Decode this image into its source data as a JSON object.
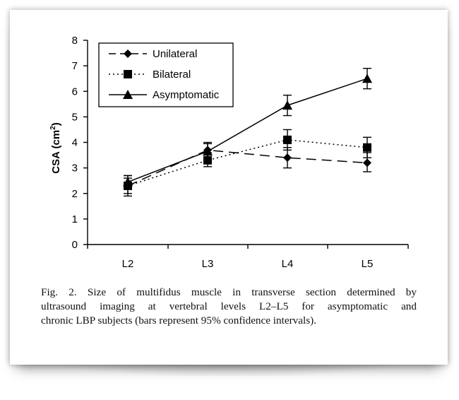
{
  "chart_data": {
    "type": "line",
    "categories": [
      "L2",
      "L3",
      "L4",
      "L5"
    ],
    "ylabel": "CSA (cm²)",
    "ylim": [
      0,
      8
    ],
    "yticks": [
      0,
      1,
      2,
      3,
      4,
      5,
      6,
      7,
      8
    ],
    "grid": false,
    "legend_position": "top-left",
    "error_bars": "95% confidence intervals",
    "series": [
      {
        "name": "Unilateral",
        "marker": "diamond",
        "line_style": "long-dash",
        "values": [
          2.3,
          3.7,
          3.4,
          3.2
        ],
        "error_low": [
          1.9,
          3.4,
          3.0,
          2.85
        ],
        "error_high": [
          2.7,
          4.0,
          3.8,
          3.6
        ]
      },
      {
        "name": "Bilateral",
        "marker": "square",
        "line_style": "dotted",
        "values": [
          2.3,
          3.3,
          4.1,
          3.8
        ],
        "error_low": [
          2.0,
          3.05,
          3.7,
          3.4
        ],
        "error_high": [
          2.6,
          3.6,
          4.5,
          4.2
        ]
      },
      {
        "name": "Asymptomatic",
        "marker": "triangle",
        "line_style": "solid",
        "values": [
          2.45,
          3.65,
          5.45,
          6.5
        ],
        "error_low": [
          2.2,
          3.35,
          5.05,
          6.1
        ],
        "error_high": [
          2.7,
          3.95,
          5.85,
          6.9
        ]
      }
    ]
  },
  "caption": {
    "lines": [
      "Fig. 2. Size of multifidus muscle in transverse section determined by",
      "ultrasound imaging at vertebral levels L2–L5 for asymptomatic and",
      "chronic LBP subjects (bars represent 95% confidence intervals)."
    ]
  }
}
